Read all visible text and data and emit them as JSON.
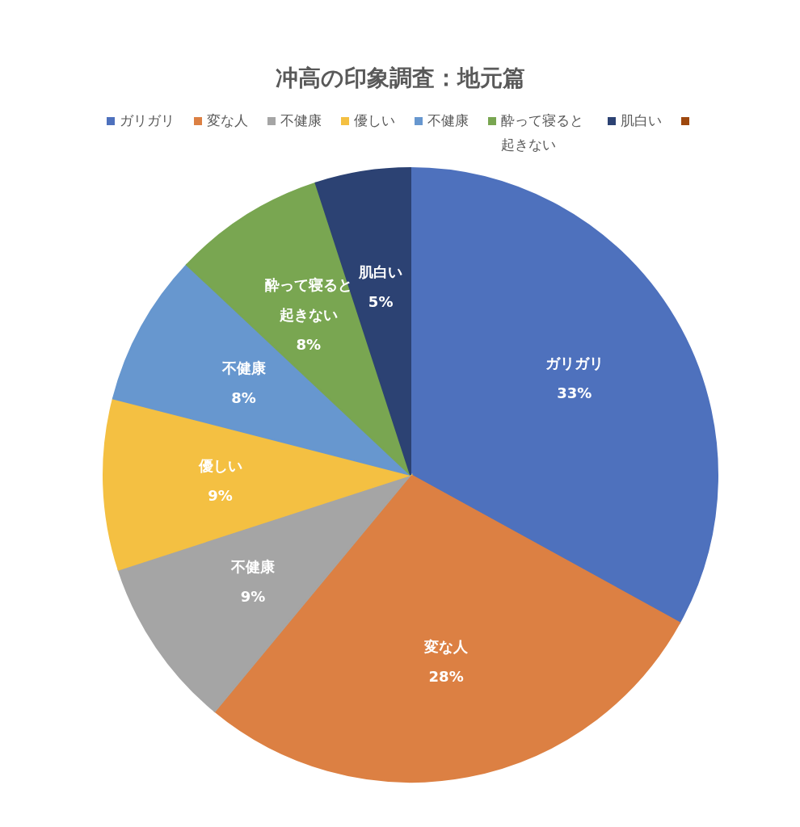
{
  "chart_data": {
    "type": "pie",
    "title": "冲高の印象調査：地元篇",
    "categories": [
      "ガリガリ",
      "変な人",
      "不健康",
      "優しい",
      "不健康",
      "酔って寝ると起きない",
      "肌白い",
      null
    ],
    "values": [
      33,
      28,
      9,
      9,
      8,
      8,
      5,
      0
    ],
    "value_labels": [
      "33%",
      "28%",
      "9%",
      "9%",
      "8%",
      "8%",
      "5%",
      null
    ],
    "colors": [
      "#4e71bd",
      "#dc8043",
      "#a5a5a5",
      "#f4c042",
      "#6797cf",
      "#79a651",
      "#2c4273",
      "#9e480e"
    ],
    "legend": "top"
  }
}
